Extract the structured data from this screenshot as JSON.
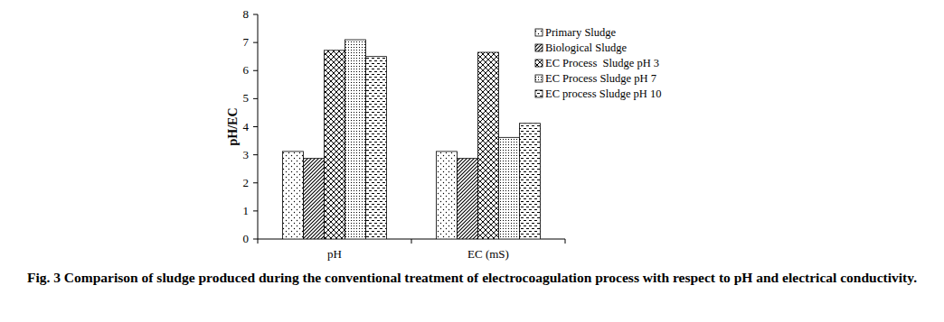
{
  "chart_data": {
    "type": "bar",
    "title": "Fig. 3 Comparison of sludge produced during the conventional treatment of electrocoagulation process with respect to pH and electrical conductivity.",
    "y_label": "pH/EC",
    "categories": [
      "pH",
      "EC (mS)"
    ],
    "series": [
      {
        "name": "Primary Sludge",
        "color": "#000000",
        "values": [
          3.12,
          3.12
        ]
      },
      {
        "name": "Biological Sludge",
        "color": "#000000",
        "values": [
          2.87,
          2.87
        ]
      },
      {
        "name": "EC Process  Sludge pH 3",
        "color": "#000000",
        "values": [
          6.72,
          6.65
        ]
      },
      {
        "name": "EC Process Sludge pH 7",
        "color": "#000000",
        "values": [
          7.1,
          3.62
        ]
      },
      {
        "name": "EC process Sludge pH 10",
        "color": "#000000",
        "values": [
          6.5,
          4.12
        ]
      }
    ],
    "ylim": [
      0,
      8
    ],
    "yticks": [
      0,
      1,
      2,
      3,
      4,
      5,
      6,
      7,
      8
    ],
    "grid": false,
    "legend": "right"
  }
}
